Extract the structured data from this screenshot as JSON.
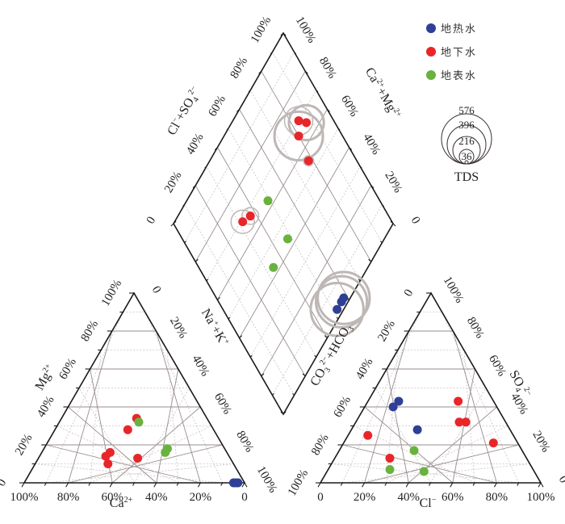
{
  "chart_data": {
    "type": "scatter",
    "subtype": "piper",
    "legend": {
      "placement": "top-right",
      "entries": [
        {
          "key": "geothermal",
          "label": "地热水",
          "color": "#2e3f96"
        },
        {
          "key": "groundwater",
          "label": "地下水",
          "color": "#e8262a"
        },
        {
          "key": "surface",
          "label": "地表水",
          "color": "#6ab23e"
        }
      ],
      "tds": {
        "title": "TDS",
        "values": [
          576,
          396,
          216,
          36
        ]
      }
    },
    "cation_triangle": {
      "axes": {
        "bottom": {
          "label": "Ca²⁺",
          "ticks": [
            "100%",
            "80%",
            "60%",
            "40%",
            "20%",
            "0"
          ]
        },
        "left": {
          "label": "Mg²⁺",
          "ticks": [
            "0",
            "20%",
            "40%",
            "60%",
            "80%",
            "100%"
          ]
        },
        "right": {
          "label": "Na⁺+K⁺",
          "ticks": [
            "0",
            "20%",
            "40%",
            "60%",
            "80%",
            "100%"
          ]
        }
      },
      "points": [
        {
          "group": "groundwater",
          "Ca": 0.32,
          "Mg": 0.34,
          "NaK": 0.34
        },
        {
          "group": "surface",
          "Ca": 0.32,
          "Mg": 0.32,
          "NaK": 0.36
        },
        {
          "group": "groundwater",
          "Ca": 0.39,
          "Mg": 0.28,
          "NaK": 0.33
        },
        {
          "group": "groundwater",
          "Ca": 0.53,
          "Mg": 0.16,
          "NaK": 0.31
        },
        {
          "group": "groundwater",
          "Ca": 0.56,
          "Mg": 0.14,
          "NaK": 0.3
        },
        {
          "group": "groundwater",
          "Ca": 0.57,
          "Mg": 0.1,
          "NaK": 0.33
        },
        {
          "group": "groundwater",
          "Ca": 0.42,
          "Mg": 0.13,
          "NaK": 0.45
        },
        {
          "group": "surface",
          "Ca": 0.26,
          "Mg": 0.18,
          "NaK": 0.56
        },
        {
          "group": "surface",
          "Ca": 0.28,
          "Mg": 0.16,
          "NaK": 0.56
        },
        {
          "group": "geothermal",
          "Ca": 0.04,
          "Mg": 0.0,
          "NaK": 0.96
        },
        {
          "group": "geothermal",
          "Ca": 0.05,
          "Mg": 0.0,
          "NaK": 0.95
        },
        {
          "group": "geothermal",
          "Ca": 0.03,
          "Mg": 0.0,
          "NaK": 0.97
        }
      ]
    },
    "anion_triangle": {
      "axes": {
        "bottom": {
          "label": "Cl⁻",
          "ticks": [
            "0",
            "20%",
            "40%",
            "60%",
            "80%",
            "100%"
          ]
        },
        "left": {
          "label": "CO₃²⁻+HCO₃⁻",
          "ticks": [
            "100%",
            "80%",
            "60%",
            "40%",
            "20%",
            "0"
          ]
        },
        "right": {
          "label": "SO₄²⁻",
          "ticks": [
            "0",
            "20%",
            "40%",
            "60%",
            "80%",
            "100%"
          ]
        }
      },
      "points": [
        {
          "group": "geothermal",
          "Cl": 0.14,
          "SO4": 0.43
        },
        {
          "group": "geothermal",
          "Cl": 0.13,
          "SO4": 0.4
        },
        {
          "group": "geothermal",
          "Cl": 0.3,
          "SO4": 0.28
        },
        {
          "group": "groundwater",
          "Cl": 0.41,
          "SO4": 0.43
        },
        {
          "group": "groundwater",
          "Cl": 0.47,
          "SO4": 0.32
        },
        {
          "group": "groundwater",
          "Cl": 0.5,
          "SO4": 0.32
        },
        {
          "group": "groundwater",
          "Cl": 0.09,
          "SO4": 0.25
        },
        {
          "group": "groundwater",
          "Cl": 0.68,
          "SO4": 0.21
        },
        {
          "group": "groundwater",
          "Cl": 0.25,
          "SO4": 0.13
        },
        {
          "group": "surface",
          "Cl": 0.34,
          "SO4": 0.17
        },
        {
          "group": "surface",
          "Cl": 0.28,
          "SO4": 0.07
        },
        {
          "group": "surface",
          "Cl": 0.44,
          "SO4": 0.06
        }
      ]
    },
    "diamond": {
      "axes": {
        "upper_left": {
          "label": "Cl⁻+SO₄²⁻",
          "ticks": [
            "0",
            "20%",
            "40%",
            "60%",
            "80%",
            "100%"
          ]
        },
        "upper_right": {
          "label": "Ca²⁺+Mg²⁺",
          "ticks": [
            "0",
            "20%",
            "40%",
            "60%",
            "80%",
            "100%"
          ]
        }
      },
      "points": [
        {
          "group": "groundwater",
          "ClSO4": 0.84,
          "CaMg": 0.7,
          "TDS": 185
        },
        {
          "group": "groundwater",
          "ClSO4": 0.87,
          "CaMg": 0.66,
          "TDS": 280
        },
        {
          "group": "groundwater",
          "ClSO4": 0.8,
          "CaMg": 0.66,
          "TDS": 540
        },
        {
          "group": "groundwater",
          "ClSO4": 0.78,
          "CaMg": 0.55,
          "TDS": 23
        },
        {
          "group": "groundwater",
          "ClSO4": 0.32,
          "CaMg": 0.69,
          "TDS": 125
        },
        {
          "group": "groundwater",
          "ClSO4": 0.37,
          "CaMg": 0.67,
          "TDS": 64
        },
        {
          "group": "surface",
          "ClSO4": 0.49,
          "CaMg": 0.63,
          "TDS": 10
        },
        {
          "group": "surface",
          "ClSO4": 0.48,
          "CaMg": 0.44,
          "TDS": 10
        },
        {
          "group": "surface",
          "ClSO4": 0.34,
          "CaMg": 0.43,
          "TDS": 10
        },
        {
          "group": "geothermal",
          "ClSO4": 0.56,
          "CaMg": 0.03,
          "TDS": 600
        },
        {
          "group": "geothermal",
          "ClSO4": 0.58,
          "CaMg": 0.03,
          "TDS": 620
        },
        {
          "group": "geothermal",
          "ClSO4": 0.52,
          "CaMg": 0.03,
          "TDS": 640
        }
      ]
    },
    "colors": {
      "frame": "#1a1a1a",
      "grid_major": "#9a8d8d",
      "grid_minor": "#c9c2c2",
      "tds_circle": "#bdb7b5"
    }
  }
}
